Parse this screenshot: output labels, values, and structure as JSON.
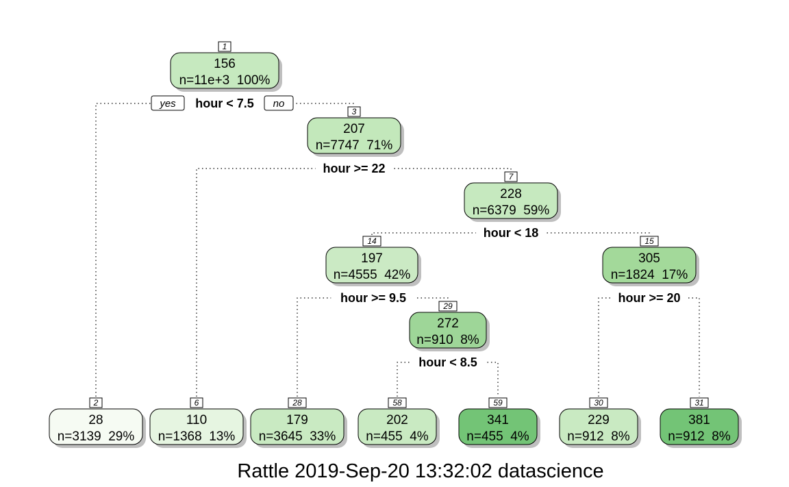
{
  "tree": {
    "nodes": [
      {
        "id": "1",
        "value": "156",
        "n_text": "n=11e+3  100%",
        "fill": "#c6e9bf"
      },
      {
        "id": "3",
        "value": "207",
        "n_text": "n=7747  71%",
        "fill": "#c3e8bb"
      },
      {
        "id": "7",
        "value": "228",
        "n_text": "n=6379  59%",
        "fill": "#c6e9bf"
      },
      {
        "id": "14",
        "value": "197",
        "n_text": "n=4555  42%",
        "fill": "#cbeac4"
      },
      {
        "id": "15",
        "value": "305",
        "n_text": "n=1824  17%",
        "fill": "#a3d99a"
      },
      {
        "id": "29",
        "value": "272",
        "n_text": "n=910  8%",
        "fill": "#9ed698"
      },
      {
        "id": "2",
        "value": "28",
        "n_text": "n=3139  29%",
        "fill": "#f6fbf3"
      },
      {
        "id": "6",
        "value": "110",
        "n_text": "n=1368  13%",
        "fill": "#e6f5e1"
      },
      {
        "id": "28",
        "value": "179",
        "n_text": "n=3645  33%",
        "fill": "#c9eac2"
      },
      {
        "id": "58",
        "value": "202",
        "n_text": "n=455  4%",
        "fill": "#c9eac2"
      },
      {
        "id": "59",
        "value": "341",
        "n_text": "n=455  4%",
        "fill": "#73c476"
      },
      {
        "id": "30",
        "value": "229",
        "n_text": "n=912  8%",
        "fill": "#c9eac2"
      },
      {
        "id": "31",
        "value": "381",
        "n_text": "n=912  8%",
        "fill": "#73c476"
      }
    ],
    "splits": [
      {
        "node": "1",
        "label": "hour < 7.5"
      },
      {
        "node": "3",
        "label": "hour >= 22"
      },
      {
        "node": "7",
        "label": "hour < 18"
      },
      {
        "node": "14",
        "label": "hour >= 9.5"
      },
      {
        "node": "15",
        "label": "hour >= 20"
      },
      {
        "node": "29",
        "label": "hour < 8.5"
      }
    ],
    "yes_label": "yes",
    "no_label": "no"
  },
  "footer": "Rattle 2019-Sep-20 13:32:02 datascience"
}
